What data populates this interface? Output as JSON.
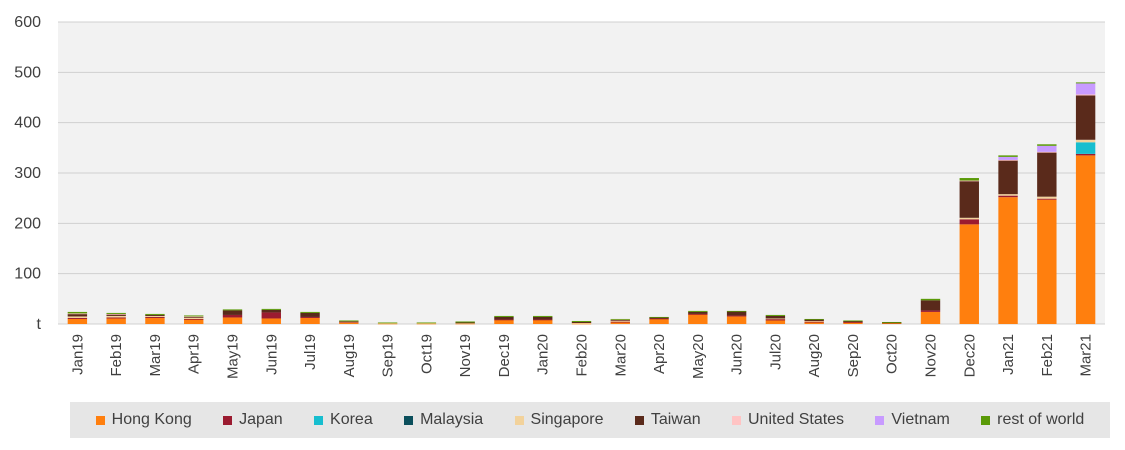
{
  "chart_data": {
    "type": "bar",
    "stacked": true,
    "title": "",
    "xlabel": "",
    "ylabel": "",
    "ylim": [
      0,
      600
    ],
    "yticks": [
      0,
      100,
      200,
      300,
      400,
      500,
      600
    ],
    "ytick_labels": [
      "t",
      "100",
      "200",
      "300",
      "400",
      "500",
      "600"
    ],
    "grid": true,
    "legend_position": "bottom",
    "categories": [
      "Jan19",
      "Feb19",
      "Mar19",
      "Apr19",
      "May19",
      "Jun19",
      "Jul19",
      "Aug19",
      "Sep19",
      "Oct19",
      "Nov19",
      "Dec19",
      "Jan20",
      "Feb20",
      "Mar20",
      "Apr20",
      "May20",
      "Jun20",
      "Jul20",
      "Aug20",
      "Sep20",
      "Oct20",
      "Nov20",
      "Dec20",
      "Jan21",
      "Feb21",
      "Mar21"
    ],
    "series": [
      {
        "name": "Hong Kong",
        "color": "#ff7f0e",
        "values": [
          10,
          11,
          12,
          9,
          13,
          11,
          12,
          3,
          1,
          1,
          1,
          8,
          8,
          1,
          3,
          10,
          19,
          15,
          7,
          3,
          3,
          2,
          24,
          198,
          252,
          247,
          335
        ]
      },
      {
        "name": "Japan",
        "color": "#9b1b30",
        "values": [
          2,
          2,
          2,
          1,
          5,
          12,
          2,
          1,
          0,
          0,
          0,
          1,
          1,
          0,
          2,
          1,
          1,
          2,
          3,
          2,
          1,
          0,
          3,
          10,
          3,
          2,
          3
        ]
      },
      {
        "name": "Korea",
        "color": "#17becf",
        "values": [
          0,
          0,
          0,
          0,
          0,
          0,
          0,
          0,
          0,
          0,
          0,
          0,
          0,
          0,
          0,
          0,
          0,
          0,
          0,
          0,
          0,
          0,
          0,
          0,
          0,
          0,
          23
        ]
      },
      {
        "name": "Malaysia",
        "color": "#0b4f5c",
        "values": [
          0,
          0,
          0,
          0,
          0,
          0,
          0,
          0,
          0,
          0,
          0,
          0,
          0,
          0,
          0,
          0,
          0,
          0,
          0,
          0,
          0,
          0,
          0,
          0,
          0,
          0,
          0
        ]
      },
      {
        "name": "Singapore",
        "color": "#f2d29b",
        "values": [
          3,
          3,
          2,
          2,
          0,
          0,
          0,
          1,
          1,
          1,
          1,
          0,
          0,
          1,
          1,
          0,
          0,
          0,
          1,
          1,
          0,
          0,
          0,
          3,
          3,
          4,
          5
        ]
      },
      {
        "name": "Taiwan",
        "color": "#5a2a1b",
        "values": [
          5,
          3,
          2,
          2,
          9,
          5,
          8,
          1,
          0,
          0,
          1,
          5,
          5,
          2,
          2,
          2,
          4,
          8,
          5,
          3,
          2,
          1,
          20,
          73,
          67,
          88,
          88
        ]
      },
      {
        "name": "United States",
        "color": "#ffc4c4",
        "values": [
          1,
          1,
          0,
          1,
          0,
          0,
          0,
          0,
          0,
          0,
          0,
          0,
          0,
          0,
          1,
          0,
          0,
          0,
          0,
          0,
          0,
          0,
          0,
          1,
          1,
          1,
          2
        ]
      },
      {
        "name": "Vietnam",
        "color": "#c89bff",
        "values": [
          0,
          0,
          0,
          0,
          0,
          0,
          0,
          0,
          0,
          0,
          0,
          0,
          0,
          0,
          0,
          0,
          0,
          0,
          0,
          0,
          0,
          0,
          0,
          0,
          6,
          12,
          22
        ]
      },
      {
        "name": "rest of world",
        "color": "#5a9a08",
        "values": [
          3,
          2,
          2,
          2,
          2,
          2,
          2,
          1,
          1,
          1,
          2,
          2,
          2,
          2,
          1,
          1,
          2,
          1,
          2,
          1,
          1,
          1,
          3,
          5,
          3,
          3,
          2
        ]
      }
    ]
  }
}
